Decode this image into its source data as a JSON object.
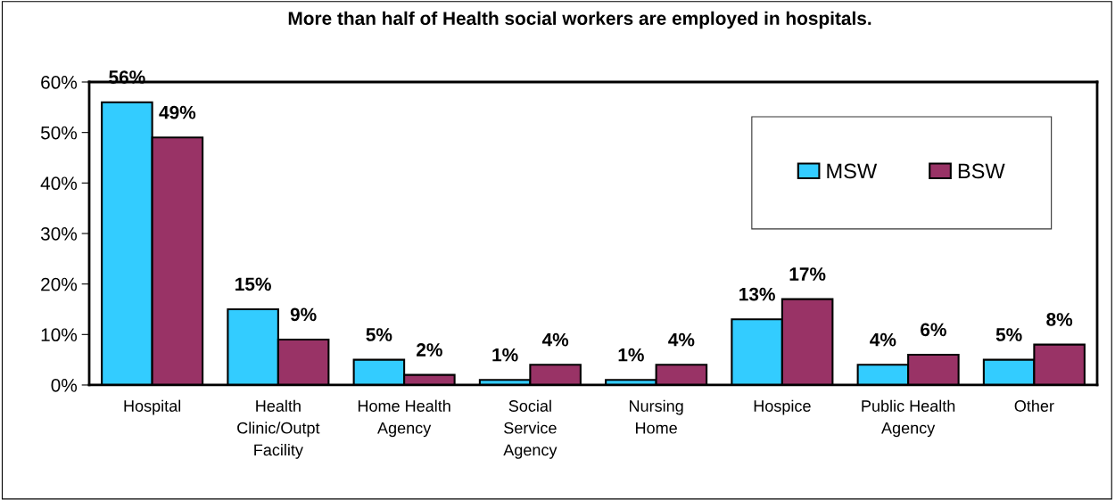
{
  "chart_data": {
    "type": "bar",
    "title": "More than half of Health social workers are employed in hospitals.",
    "categories": [
      "Hospital",
      "Health\nClinic/Outpt\nFacility",
      "Home Health\nAgency",
      "Social\nService\nAgency",
      "Nursing\nHome",
      "Hospice",
      "Public Health\nAgency",
      "Other"
    ],
    "series": [
      {
        "name": "MSW",
        "color": "#33ccff",
        "values": [
          56,
          15,
          5,
          1,
          1,
          13,
          4,
          5
        ],
        "value_labels": [
          "56%",
          "15%",
          "5%",
          "1%",
          "1%",
          "13%",
          "4%",
          "5%"
        ]
      },
      {
        "name": "BSW",
        "color": "#993366",
        "values": [
          49,
          9,
          2,
          4,
          4,
          17,
          6,
          8
        ],
        "value_labels": [
          "49%",
          "9%",
          "2%",
          "4%",
          "4%",
          "17%",
          "6%",
          "8%"
        ]
      }
    ],
    "ylim": [
      0,
      60
    ],
    "yticks": [
      {
        "value": 0,
        "label": "0%"
      },
      {
        "value": 10,
        "label": "10%"
      },
      {
        "value": 20,
        "label": "20%"
      },
      {
        "value": 30,
        "label": "30%"
      },
      {
        "value": 40,
        "label": "40%"
      },
      {
        "value": 50,
        "label": "50%"
      },
      {
        "value": 60,
        "label": "60%"
      }
    ],
    "grid": false,
    "legend": "top right"
  }
}
